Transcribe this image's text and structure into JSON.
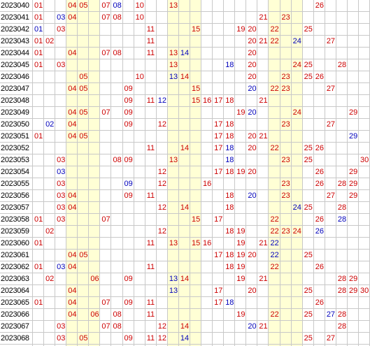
{
  "colors": {
    "red": "#cc0000",
    "blue": "#0000bb",
    "band": "#ffffd5",
    "grid": "#c8c8c8"
  },
  "rows": [
    {
      "issue": "2023040",
      "red": [
        "01",
        "04",
        "05",
        "07",
        "10",
        "13",
        "26"
      ],
      "blue": [
        "08"
      ]
    },
    {
      "issue": "2023041",
      "red": [
        "01",
        "04",
        "07",
        "08",
        "10",
        "21",
        "23"
      ],
      "blue": [
        "03"
      ]
    },
    {
      "issue": "2023042",
      "red": [
        "03",
        "11",
        "15",
        "19",
        "20",
        "22",
        "25"
      ],
      "blue": [
        "01"
      ]
    },
    {
      "issue": "2023043",
      "red": [
        "01",
        "02",
        "11",
        "20",
        "21",
        "22",
        "27"
      ],
      "blue": [
        "24"
      ]
    },
    {
      "issue": "2023044",
      "red": [
        "01",
        "04",
        "07",
        "08",
        "11",
        "13",
        "20"
      ],
      "blue": [
        "14"
      ]
    },
    {
      "issue": "2023045",
      "red": [
        "01",
        "03",
        "13",
        "20",
        "24",
        "25",
        "28"
      ],
      "blue": [
        "18"
      ]
    },
    {
      "issue": "2023046",
      "red": [
        "05",
        "10",
        "14",
        "20",
        "23",
        "25",
        "26"
      ],
      "blue": [
        "13"
      ]
    },
    {
      "issue": "2023047",
      "red": [
        "04",
        "05",
        "09",
        "15",
        "22",
        "23",
        "27"
      ],
      "blue": [
        "20"
      ]
    },
    {
      "issue": "2023048",
      "red": [
        "09",
        "11",
        "15",
        "16",
        "17",
        "18",
        "21"
      ],
      "blue": [
        "12"
      ]
    },
    {
      "issue": "2023049",
      "red": [
        "04",
        "05",
        "07",
        "09",
        "19",
        "24",
        "29"
      ],
      "blue": [
        "20"
      ]
    },
    {
      "issue": "2023050",
      "red": [
        "04",
        "09",
        "12",
        "17",
        "18",
        "23",
        "27"
      ],
      "blue": [
        "02"
      ]
    },
    {
      "issue": "2023051",
      "red": [
        "01",
        "04",
        "05",
        "17",
        "18",
        "20",
        "21"
      ],
      "blue": [
        "29"
      ]
    },
    {
      "issue": "2023052",
      "red": [
        "11",
        "14",
        "17",
        "20",
        "22",
        "25",
        "26"
      ],
      "blue": [
        "18"
      ]
    },
    {
      "issue": "2023053",
      "red": [
        "03",
        "08",
        "09",
        "13",
        "23",
        "25",
        "30"
      ],
      "blue": [
        "18"
      ]
    },
    {
      "issue": "2023054",
      "red": [
        "12",
        "17",
        "18",
        "19",
        "20",
        "26",
        "29"
      ],
      "blue": [
        "03"
      ]
    },
    {
      "issue": "2023055",
      "red": [
        "03",
        "12",
        "16",
        "23",
        "26",
        "28",
        "29"
      ],
      "blue": [
        "09"
      ]
    },
    {
      "issue": "2023056",
      "red": [
        "03",
        "04",
        "09",
        "11",
        "18",
        "23",
        "27",
        "29"
      ],
      "blue": [
        "20"
      ]
    },
    {
      "issue": "2023057",
      "red": [
        "03",
        "04",
        "12",
        "14",
        "18",
        "25",
        "28"
      ],
      "blue": [
        "24"
      ]
    },
    {
      "issue": "2023058",
      "red": [
        "01",
        "03",
        "07",
        "15",
        "17",
        "22",
        "26"
      ],
      "blue": [
        "28"
      ]
    },
    {
      "issue": "2023059",
      "red": [
        "02",
        "12",
        "18",
        "19",
        "22",
        "23",
        "24"
      ],
      "blue": [
        "26"
      ]
    },
    {
      "issue": "2023060",
      "red": [
        "01",
        "11",
        "13",
        "15",
        "16",
        "19",
        "21"
      ],
      "blue": [
        "22"
      ]
    },
    {
      "issue": "2023061",
      "red": [
        "04",
        "05",
        "17",
        "18",
        "19",
        "20",
        "25"
      ],
      "blue": [
        "22"
      ]
    },
    {
      "issue": "2023062",
      "red": [
        "01",
        "04",
        "11",
        "18",
        "19",
        "22",
        "26"
      ],
      "blue": [
        "03"
      ]
    },
    {
      "issue": "2023063",
      "red": [
        "02",
        "06",
        "09",
        "14",
        "19",
        "21",
        "28",
        "29"
      ],
      "blue": [
        "13"
      ]
    },
    {
      "issue": "2023064",
      "red": [
        "04",
        "17",
        "20",
        "25",
        "28",
        "29",
        "30"
      ],
      "blue": [
        "13"
      ]
    },
    {
      "issue": "2023065",
      "red": [
        "01",
        "04",
        "07",
        "09",
        "11",
        "17",
        "26"
      ],
      "blue": [
        "18"
      ]
    },
    {
      "issue": "2023066",
      "red": [
        "04",
        "06",
        "08",
        "11",
        "19",
        "22",
        "25",
        "28"
      ],
      "blue": [
        "27"
      ]
    },
    {
      "issue": "2023067",
      "red": [
        "03",
        "07",
        "08",
        "12",
        "14",
        "21",
        "28"
      ],
      "blue": [
        "20"
      ]
    },
    {
      "issue": "2023068",
      "red": [
        "03",
        "05",
        "09",
        "11",
        "12",
        "25",
        "27"
      ],
      "blue": [
        "14"
      ]
    }
  ]
}
